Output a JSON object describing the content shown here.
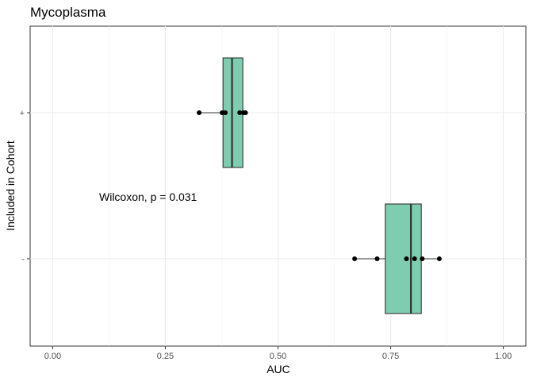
{
  "chart_data": {
    "type": "boxplot",
    "title": "Mycoplasma",
    "xlabel": "AUC",
    "ylabel": "Included in Cohort",
    "xlim": [
      -0.05,
      1.05
    ],
    "x_ticks": [
      "0.00",
      "0.25",
      "0.50",
      "0.75",
      "1.00"
    ],
    "categories": [
      "+",
      "-"
    ],
    "orientation": "horizontal",
    "grid": true,
    "box_color": "#7fcdb0",
    "groups": [
      {
        "category": "+",
        "box": {
          "min": 0.325,
          "q1": 0.378,
          "median": 0.398,
          "q3": 0.422,
          "max": 0.428
        },
        "points": [
          0.325,
          0.376,
          0.383,
          0.415,
          0.423,
          0.428
        ]
      },
      {
        "category": "-",
        "box": {
          "min": 0.67,
          "q1": 0.738,
          "median": 0.795,
          "q3": 0.818,
          "max": 0.858
        },
        "points": [
          0.67,
          0.72,
          0.785,
          0.803,
          0.82,
          0.858
        ]
      }
    ],
    "annotation": "Wilcoxon, p = 0.031"
  }
}
